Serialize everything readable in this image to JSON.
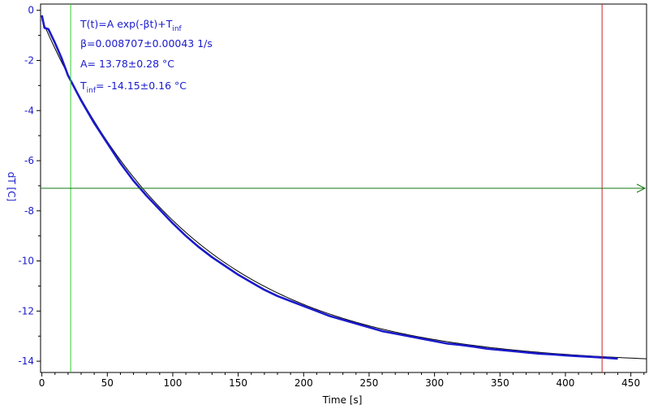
{
  "chart_data": {
    "type": "line",
    "xlabel": "Time [s]",
    "ylabel": "dT [C]",
    "xlim": [
      -1,
      462
    ],
    "ylim": [
      -14.45,
      0.25
    ],
    "xticks": [
      0,
      50,
      100,
      150,
      200,
      250,
      300,
      350,
      400,
      450
    ],
    "yticks": [
      0,
      -2,
      -4,
      -6,
      -8,
      -10,
      -12,
      -14
    ],
    "grid": false,
    "colors": {
      "data": "#1a1acc",
      "fit": "#000000",
      "start_cursor": "#33cc33",
      "end_cursor": "#cc2222",
      "threshold_arrow": "#117711"
    },
    "fit": {
      "formula_prefix": "T(t)=A exp(-βt)+T",
      "formula_sub": "inf",
      "beta_text": "β=0.008707±0.00043 1/s",
      "a_text": "A= 13.78±0.28 °C",
      "tinf_prefix": "T",
      "tinf_sub": "inf",
      "tinf_suffix": "= -14.15±0.16 °C",
      "beta": 0.008707,
      "A": 13.78,
      "T_inf": -14.15
    },
    "start_cursor_x": 22,
    "end_cursor_x": 428,
    "threshold_y": -7.1,
    "series": [
      {
        "x": [
          0,
          2,
          5,
          10,
          15,
          20,
          25,
          30,
          40,
          50,
          60,
          70,
          80,
          90,
          100,
          110,
          120,
          130,
          140,
          150,
          160,
          170,
          180,
          190,
          200,
          210,
          220,
          230,
          240,
          250,
          260,
          270,
          280,
          290,
          300,
          310,
          320,
          330,
          340,
          350,
          360,
          370,
          380,
          390,
          400,
          410,
          420,
          430,
          440
        ],
        "y": [
          -0.2,
          -0.7,
          -0.75,
          -1.3,
          -1.9,
          -2.6,
          -3.1,
          -3.6,
          -4.5,
          -5.3,
          -6.1,
          -6.8,
          -7.4,
          -7.95,
          -8.5,
          -9.0,
          -9.45,
          -9.85,
          -10.2,
          -10.55,
          -10.85,
          -11.15,
          -11.4,
          -11.6,
          -11.8,
          -12.0,
          -12.2,
          -12.35,
          -12.5,
          -12.65,
          -12.8,
          -12.9,
          -13.0,
          -13.1,
          -13.2,
          -13.3,
          -13.35,
          -13.42,
          -13.5,
          -13.55,
          -13.6,
          -13.65,
          -13.7,
          -13.73,
          -13.77,
          -13.8,
          -13.83,
          -13.86,
          -13.9
        ]
      }
    ]
  }
}
